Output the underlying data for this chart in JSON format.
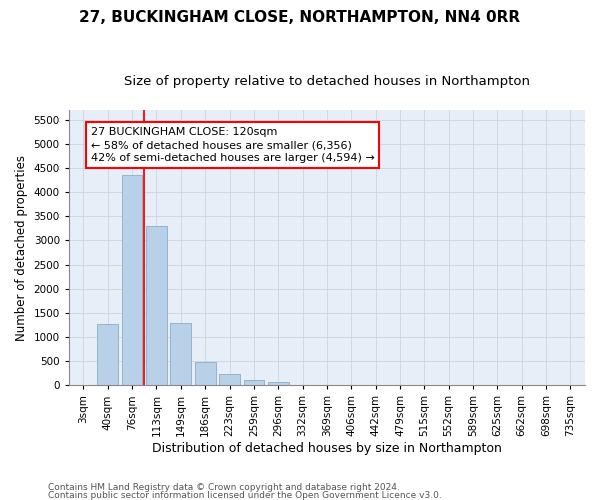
{
  "title": "27, BUCKINGHAM CLOSE, NORTHAMPTON, NN4 0RR",
  "subtitle": "Size of property relative to detached houses in Northampton",
  "xlabel": "Distribution of detached houses by size in Northampton",
  "ylabel": "Number of detached properties",
  "categories": [
    "3sqm",
    "40sqm",
    "76sqm",
    "113sqm",
    "149sqm",
    "186sqm",
    "223sqm",
    "259sqm",
    "296sqm",
    "332sqm",
    "369sqm",
    "406sqm",
    "442sqm",
    "479sqm",
    "515sqm",
    "552sqm",
    "589sqm",
    "625sqm",
    "662sqm",
    "698sqm",
    "735sqm"
  ],
  "values": [
    0,
    1270,
    4350,
    3300,
    1280,
    480,
    230,
    100,
    60,
    0,
    0,
    0,
    0,
    0,
    0,
    0,
    0,
    0,
    0,
    0,
    0
  ],
  "bar_color": "#b8d0e8",
  "bar_edge_color": "#8aaec8",
  "grid_color": "#c8d4e4",
  "background_color": "#e8eef8",
  "vline_color": "red",
  "vline_x": 2.5,
  "annotation_line1": "27 BUCKINGHAM CLOSE: 120sqm",
  "annotation_line2": "← 58% of detached houses are smaller (6,356)",
  "annotation_line3": "42% of semi-detached houses are larger (4,594) →",
  "ylim": [
    0,
    5700
  ],
  "yticks": [
    0,
    500,
    1000,
    1500,
    2000,
    2500,
    3000,
    3500,
    4000,
    4500,
    5000,
    5500
  ],
  "footer_line1": "Contains HM Land Registry data © Crown copyright and database right 2024.",
  "footer_line2": "Contains public sector information licensed under the Open Government Licence v3.0.",
  "title_fontsize": 11,
  "subtitle_fontsize": 9.5,
  "xlabel_fontsize": 9,
  "ylabel_fontsize": 8.5,
  "tick_fontsize": 7.5,
  "annotation_fontsize": 8,
  "footer_fontsize": 6.5
}
